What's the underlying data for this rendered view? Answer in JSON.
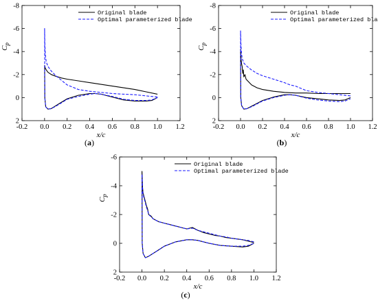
{
  "chart_data": [
    {
      "id": "a",
      "type": "line",
      "panel_label": "a",
      "xlabel": "x/c",
      "ylabel": "C",
      "ylabel_sub": "p",
      "xlim": [
        -0.2,
        1.2
      ],
      "ylim": [
        -8,
        2
      ],
      "y_inverted": true,
      "xticks": [
        -0.2,
        0.0,
        0.2,
        0.4,
        0.6,
        0.8,
        1.0,
        1.2
      ],
      "xtick_labels": [
        "-0.2",
        "0.0",
        "0.2",
        "0.4",
        "0.6",
        "0.8",
        "1.0",
        "1.2"
      ],
      "yticks": [
        -8,
        -6,
        -4,
        -2,
        0,
        2
      ],
      "ytick_labels": [
        "-8",
        "-6",
        "-4",
        "-2",
        "0",
        "2"
      ],
      "legend_position": "top-right",
      "series": [
        {
          "name": "Original blade",
          "style": "solid",
          "color": "#000000",
          "x": [
            1.0,
            0.9,
            0.8,
            0.7,
            0.6,
            0.5,
            0.4,
            0.3,
            0.2,
            0.15,
            0.1,
            0.06,
            0.03,
            0.015,
            0.005,
            0.0,
            0.002,
            0.01,
            0.03,
            0.06,
            0.1,
            0.15,
            0.2,
            0.3,
            0.4,
            0.45,
            0.5,
            0.6,
            0.7,
            0.8,
            0.9,
            0.95,
            1.0
          ],
          "y": [
            -0.3,
            -0.5,
            -0.7,
            -0.85,
            -1.0,
            -1.15,
            -1.3,
            -1.45,
            -1.6,
            -1.7,
            -1.85,
            -2.0,
            -2.2,
            -2.4,
            -2.6,
            -2.8,
            0.0,
            0.8,
            1.0,
            0.95,
            0.7,
            0.4,
            0.1,
            -0.2,
            -0.35,
            -0.35,
            -0.3,
            -0.05,
            0.2,
            0.3,
            0.3,
            0.25,
            0.0
          ]
        },
        {
          "name": "Optimal parameterized blade",
          "style": "dashed",
          "color": "#1a1aff",
          "x": [
            1.0,
            0.9,
            0.8,
            0.7,
            0.6,
            0.5,
            0.4,
            0.3,
            0.2,
            0.15,
            0.1,
            0.06,
            0.03,
            0.015,
            0.008,
            0.003,
            0.0,
            0.002,
            0.01,
            0.03,
            0.06,
            0.1,
            0.15,
            0.2,
            0.3,
            0.4,
            0.45,
            0.5,
            0.6,
            0.7,
            0.8,
            0.9,
            0.95,
            1.0
          ],
          "y": [
            -0.05,
            -0.15,
            -0.25,
            -0.3,
            -0.35,
            -0.45,
            -0.55,
            -0.7,
            -1.1,
            -1.5,
            -1.9,
            -2.3,
            -2.7,
            -3.1,
            -3.6,
            -4.5,
            -6.0,
            0.0,
            0.8,
            1.0,
            0.95,
            0.75,
            0.45,
            0.15,
            -0.1,
            -0.3,
            -0.35,
            -0.3,
            -0.1,
            0.15,
            0.25,
            0.25,
            0.2,
            0.0
          ]
        }
      ]
    },
    {
      "id": "b",
      "type": "line",
      "panel_label": "b",
      "xlabel": "x/c",
      "ylabel": "C",
      "ylabel_sub": "p",
      "xlim": [
        -0.2,
        1.2
      ],
      "ylim": [
        -8,
        2
      ],
      "y_inverted": true,
      "xticks": [
        -0.2,
        0.0,
        0.2,
        0.4,
        0.6,
        0.8,
        1.0,
        1.2
      ],
      "xtick_labels": [
        "-0.2",
        "0.0",
        "0.2",
        "0.4",
        "0.6",
        "0.8",
        "1.0",
        "1.2"
      ],
      "yticks": [
        -8,
        -6,
        -4,
        -2,
        0,
        2
      ],
      "ytick_labels": [
        "-8",
        "-6",
        "-4",
        "-2",
        "0",
        "2"
      ],
      "legend_position": "top-right",
      "series": [
        {
          "name": "Original blade",
          "style": "solid",
          "color": "#000000",
          "x": [
            1.0,
            0.9,
            0.8,
            0.7,
            0.6,
            0.5,
            0.4,
            0.3,
            0.2,
            0.15,
            0.1,
            0.07,
            0.05,
            0.04,
            0.03,
            0.025,
            0.02,
            0.015,
            0.01,
            0.005,
            0.0,
            0.002,
            0.01,
            0.03,
            0.06,
            0.1,
            0.15,
            0.2,
            0.3,
            0.4,
            0.45,
            0.5,
            0.6,
            0.7,
            0.8,
            0.9,
            0.95,
            1.0
          ],
          "y": [
            -0.35,
            -0.35,
            -0.35,
            -0.35,
            -0.4,
            -0.4,
            -0.45,
            -0.55,
            -0.7,
            -0.85,
            -1.1,
            -1.4,
            -1.6,
            -2.0,
            -1.8,
            -2.4,
            -2.1,
            -2.7,
            -2.9,
            -3.3,
            -4.2,
            0.0,
            0.7,
            1.0,
            0.95,
            0.75,
            0.5,
            0.25,
            -0.05,
            -0.25,
            -0.25,
            -0.2,
            0.0,
            0.1,
            0.2,
            0.25,
            0.2,
            0.0
          ]
        },
        {
          "name": "Optimal parameterized blade",
          "style": "dashed",
          "color": "#1a1aff",
          "x": [
            1.0,
            0.9,
            0.8,
            0.7,
            0.6,
            0.55,
            0.5,
            0.45,
            0.4,
            0.3,
            0.2,
            0.15,
            0.1,
            0.06,
            0.03,
            0.015,
            0.008,
            0.003,
            0.0,
            0.002,
            0.01,
            0.03,
            0.06,
            0.1,
            0.15,
            0.2,
            0.3,
            0.4,
            0.45,
            0.5,
            0.6,
            0.7,
            0.8,
            0.9,
            0.95,
            1.0
          ],
          "y": [
            -0.15,
            -0.25,
            -0.35,
            -0.45,
            -0.6,
            -0.8,
            -1.0,
            -1.1,
            -1.3,
            -1.6,
            -1.9,
            -2.1,
            -2.4,
            -2.7,
            -3.0,
            -3.4,
            -3.9,
            -4.7,
            -5.8,
            0.0,
            0.7,
            1.0,
            0.95,
            0.8,
            0.55,
            0.3,
            0.0,
            -0.2,
            -0.25,
            -0.2,
            0.05,
            0.2,
            0.3,
            0.35,
            0.3,
            0.1
          ]
        }
      ]
    },
    {
      "id": "c",
      "type": "line",
      "panel_label": "c",
      "xlabel": "x/c",
      "ylabel": "C",
      "ylabel_sub": "p",
      "xlim": [
        -0.2,
        1.2
      ],
      "ylim": [
        -6,
        2
      ],
      "y_inverted": true,
      "xticks": [
        -0.2,
        0.0,
        0.2,
        0.4,
        0.6,
        0.8,
        1.0,
        1.2
      ],
      "xtick_labels": [
        "-0.2",
        "0.0",
        "0.2",
        "0.4",
        "0.6",
        "0.8",
        "1.0",
        "1.2"
      ],
      "yticks": [
        -6,
        -4,
        -2,
        0,
        2
      ],
      "ytick_labels": [
        "-6",
        "-4",
        "-2",
        "0",
        "2"
      ],
      "legend_position": "top-right",
      "series": [
        {
          "name": "Original blade",
          "style": "solid",
          "color": "#000000",
          "x": [
            1.0,
            0.95,
            0.9,
            0.85,
            0.8,
            0.75,
            0.7,
            0.65,
            0.6,
            0.55,
            0.5,
            0.45,
            0.4,
            0.35,
            0.3,
            0.25,
            0.2,
            0.15,
            0.1,
            0.08,
            0.06,
            0.05,
            0.04,
            0.03,
            0.02,
            0.01,
            0.005,
            0.0,
            0.002,
            0.01,
            0.03,
            0.06,
            0.1,
            0.15,
            0.2,
            0.3,
            0.4,
            0.45,
            0.5,
            0.6,
            0.7,
            0.8,
            0.9,
            0.95,
            1.0
          ],
          "y": [
            -0.05,
            -0.15,
            -0.25,
            -0.3,
            -0.35,
            -0.4,
            -0.5,
            -0.55,
            -0.65,
            -0.75,
            -0.9,
            -1.1,
            -1.0,
            -1.1,
            -1.2,
            -1.3,
            -1.4,
            -1.5,
            -1.7,
            -1.9,
            -2.0,
            -2.4,
            -2.6,
            -2.9,
            -3.2,
            -3.5,
            -3.9,
            -5.0,
            0.0,
            0.7,
            1.0,
            0.9,
            0.7,
            0.45,
            0.2,
            -0.1,
            -0.25,
            -0.25,
            -0.2,
            0.0,
            0.15,
            0.2,
            0.25,
            0.2,
            0.0
          ]
        },
        {
          "name": "Optimal parameterized blade",
          "style": "dashed",
          "color": "#1a1aff",
          "x": [
            1.0,
            0.95,
            0.9,
            0.85,
            0.8,
            0.75,
            0.7,
            0.65,
            0.6,
            0.55,
            0.5,
            0.45,
            0.4,
            0.35,
            0.3,
            0.25,
            0.2,
            0.15,
            0.1,
            0.08,
            0.06,
            0.05,
            0.04,
            0.03,
            0.02,
            0.01,
            0.005,
            0.0,
            0.002,
            0.01,
            0.03,
            0.06,
            0.1,
            0.15,
            0.2,
            0.3,
            0.4,
            0.45,
            0.5,
            0.6,
            0.7,
            0.8,
            0.9,
            0.95,
            1.0
          ],
          "y": [
            -0.1,
            -0.2,
            -0.25,
            -0.3,
            -0.35,
            -0.45,
            -0.5,
            -0.6,
            -0.7,
            -0.8,
            -0.9,
            -1.05,
            -1.0,
            -1.1,
            -1.2,
            -1.3,
            -1.4,
            -1.5,
            -1.7,
            -1.85,
            -2.0,
            -2.3,
            -2.5,
            -2.8,
            -3.1,
            -3.4,
            -3.8,
            -4.8,
            0.0,
            0.7,
            1.0,
            0.9,
            0.7,
            0.45,
            0.2,
            -0.1,
            -0.25,
            -0.25,
            -0.2,
            0.0,
            0.15,
            0.2,
            0.2,
            0.15,
            0.0
          ]
        }
      ]
    }
  ]
}
